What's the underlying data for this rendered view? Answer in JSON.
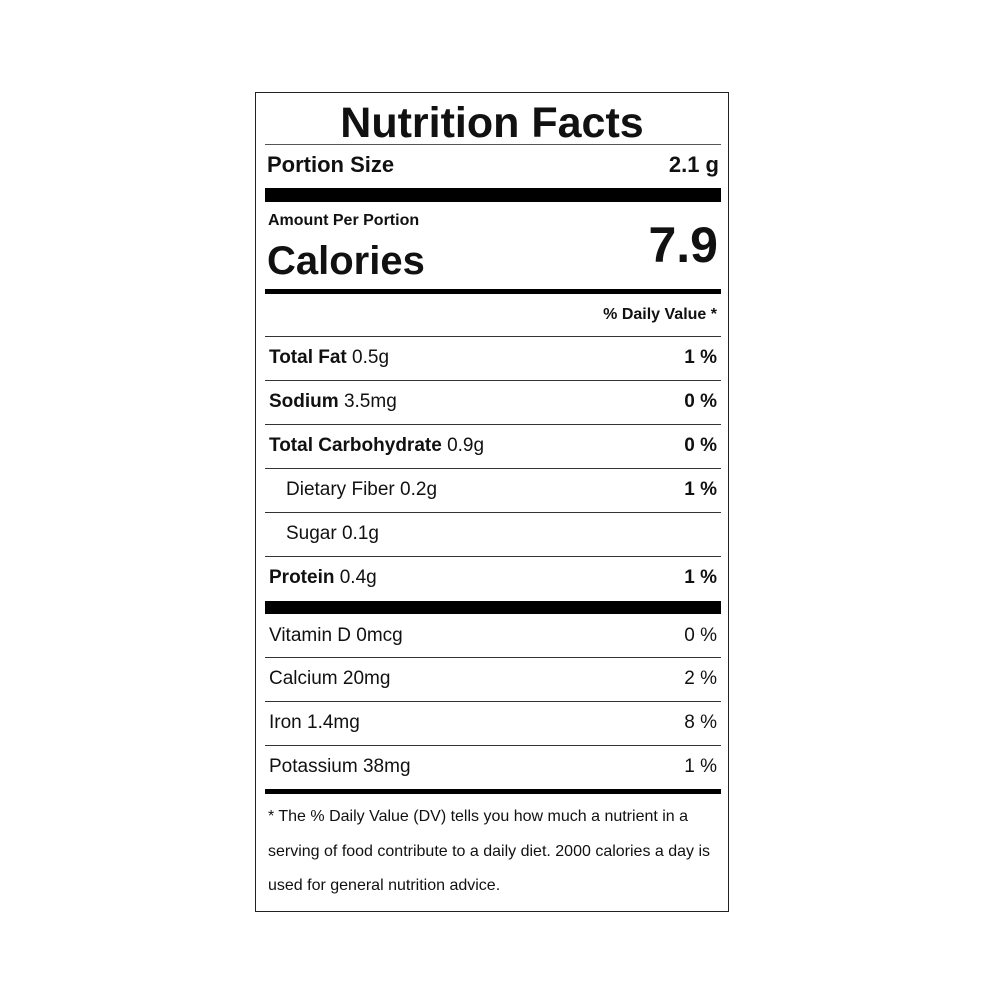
{
  "title": "Nutrition Facts",
  "portion": {
    "label": "Portion Size",
    "value": "2.1 g"
  },
  "amount_per_portion": "Amount Per Portion",
  "calories": {
    "label": "Calories",
    "value": "7.9"
  },
  "daily_value_header": "% Daily Value *",
  "nutrients": [
    {
      "name": "Total Fat",
      "amount": "0.5g",
      "dv": "1 %"
    },
    {
      "name": "Sodium",
      "amount": "3.5mg",
      "dv": "0 %"
    },
    {
      "name": "Total Carbohydrate",
      "amount": "0.9g",
      "dv": "0 %"
    },
    {
      "name": "Dietary Fiber",
      "amount": "0.2g",
      "dv": "1 %"
    },
    {
      "name": "Sugar",
      "amount": "0.1g",
      "dv": ""
    },
    {
      "name": "Protein",
      "amount": "0.4g",
      "dv": "1 %"
    }
  ],
  "vitamins": [
    {
      "text": "Vitamin D 0mcg",
      "dv": "0 %"
    },
    {
      "text": "Calcium 20mg",
      "dv": "2 %"
    },
    {
      "text": "Iron 1.4mg",
      "dv": "8 %"
    },
    {
      "text": "Potassium 38mg",
      "dv": "1 %"
    }
  ],
  "footnote": "* The % Daily Value (DV) tells you how much a nutrient in a serving of food contribute to a daily diet. 2000 calories a day is used for general nutrition advice."
}
